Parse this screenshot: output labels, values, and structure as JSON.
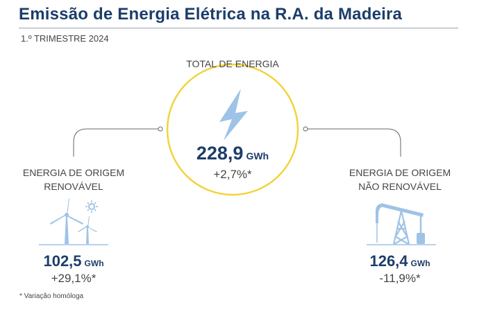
{
  "header": {
    "title": "Emissão de Energia Elétrica na R.A. da Madeira",
    "subtitle": "1.º TRIMESTRE 2024"
  },
  "total": {
    "label": "TOTAL DE ENERGIA",
    "value": "228,9",
    "unit": "GWh",
    "variation": "+2,7%*"
  },
  "renewable": {
    "label_line1": "ENERGIA DE ORIGEM",
    "label_line2": "RENOVÁVEL",
    "value": "102,5",
    "unit": "GWh",
    "variation": "+29,1%*"
  },
  "non_renewable": {
    "label_line1": "ENERGIA DE ORIGEM",
    "label_line2": "NÃO RENOVÁVEL",
    "value": "126,4",
    "unit": "GWh",
    "variation": "-11,9%*"
  },
  "footnote": "* Variação homóloga",
  "icons": {
    "total": "lightning-bolt-icon",
    "renewable": "wind-turbine-sun-icon",
    "non_renewable": "oil-pumpjack-icon"
  },
  "colors": {
    "title": "#1c3d6a",
    "circle": "#f2d33c",
    "icon": "#9ec3e6",
    "connector": "#666666"
  }
}
